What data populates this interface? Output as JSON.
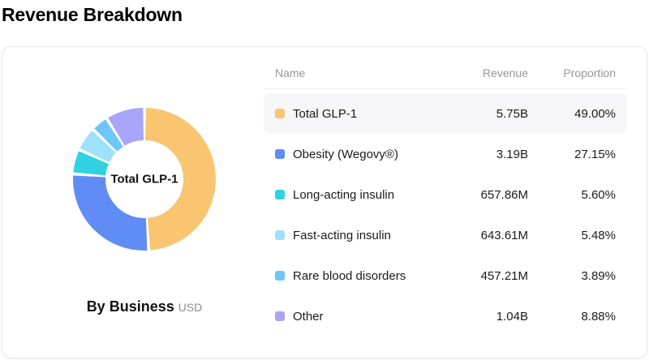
{
  "page": {
    "title": "Revenue Breakdown"
  },
  "table": {
    "headers": {
      "name": "Name",
      "revenue": "Revenue",
      "proportion": "Proportion"
    },
    "highlight_row": 0
  },
  "chart_data": {
    "type": "pie",
    "title": "By Business",
    "unit": "USD",
    "center_label": "Total GLP-1",
    "legend_position": "right-table",
    "slices": [
      {
        "label": "Total GLP-1",
        "revenue": "5.75B",
        "percent": 49.0,
        "proportion": "49.00%",
        "color": "#f9c570"
      },
      {
        "label": "Obesity (Wegovy®)",
        "revenue": "3.19B",
        "percent": 27.15,
        "proportion": "27.15%",
        "color": "#5f8df5"
      },
      {
        "label": "Long-acting insulin",
        "revenue": "657.86M",
        "percent": 5.6,
        "proportion": "5.60%",
        "color": "#30d2e2"
      },
      {
        "label": "Fast-acting insulin",
        "revenue": "643.61M",
        "percent": 5.48,
        "proportion": "5.48%",
        "color": "#9fe1fa"
      },
      {
        "label": "Rare blood disorders",
        "revenue": "457.21M",
        "percent": 3.89,
        "proportion": "3.89%",
        "color": "#6fc6f6"
      },
      {
        "label": "Other",
        "revenue": "1.04B",
        "percent": 8.88,
        "proportion": "8.88%",
        "color": "#a8a5fa"
      }
    ]
  }
}
